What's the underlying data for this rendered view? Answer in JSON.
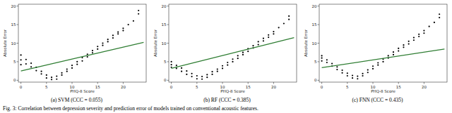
{
  "chart_data": [
    {
      "type": "scatter",
      "title": "(a) SVM (CCC = 0.055)",
      "x_label": "PHQ-8 Score",
      "y_label": "Absolute Error",
      "xlim": [
        -0.5,
        24.5
      ],
      "ylim": [
        -0.5,
        20.5
      ],
      "xticks": [
        0,
        5,
        10,
        15,
        20
      ],
      "yticks": [
        0,
        5,
        10,
        15,
        20
      ],
      "grid": false,
      "series": [
        {
          "type": "scatter",
          "color": "#000000",
          "marker": "circle",
          "x": [
            0,
            0,
            0,
            1,
            1,
            2,
            2,
            3,
            3,
            4,
            4,
            5,
            5,
            6,
            6,
            7,
            7,
            8,
            8,
            9,
            9,
            10,
            10,
            11,
            11,
            12,
            12,
            13,
            13,
            14,
            14,
            15,
            15,
            16,
            16,
            17,
            17,
            18,
            18,
            19,
            19,
            20,
            20,
            21,
            22,
            23,
            23
          ],
          "values": [
            6.8,
            5.5,
            4.2,
            5.6,
            4.4,
            4.6,
            3.6,
            3.5,
            2.6,
            2.4,
            1.7,
            1.4,
            0.6,
            0.8,
            0.2,
            1.1,
            0.3,
            2.0,
            1.4,
            3.0,
            2.4,
            4.0,
            3.3,
            5.0,
            4.3,
            6.1,
            5.2,
            7.0,
            6.3,
            8.0,
            7.4,
            9.1,
            8.4,
            10.0,
            9.4,
            11.0,
            10.4,
            12.1,
            11.4,
            13.0,
            12.5,
            14.0,
            13.4,
            15.0,
            16.0,
            18.8,
            17.9
          ]
        },
        {
          "type": "line",
          "color": "#2e7d32",
          "line_style": "solid",
          "x": [
            0,
            24
          ],
          "values": [
            2.5,
            10.2
          ]
        }
      ]
    },
    {
      "type": "scatter",
      "title": "(b) RF (CCC = 0.385)",
      "x_label": "PHQ-8 Score",
      "y_label": "Absolute Error",
      "xlim": [
        -0.5,
        24.5
      ],
      "ylim": [
        -0.5,
        20.5
      ],
      "xticks": [
        0,
        5,
        10,
        15,
        20
      ],
      "yticks": [
        0,
        5,
        10,
        15,
        20
      ],
      "grid": false,
      "series": [
        {
          "type": "scatter",
          "color": "#000000",
          "marker": "circle",
          "x": [
            0,
            0,
            0,
            1,
            1,
            2,
            2,
            3,
            3,
            4,
            4,
            5,
            5,
            6,
            6,
            7,
            7,
            8,
            8,
            9,
            9,
            10,
            10,
            11,
            11,
            12,
            12,
            13,
            13,
            14,
            14,
            15,
            15,
            16,
            16,
            17,
            17,
            18,
            18,
            19,
            19,
            20,
            20,
            21,
            22,
            23,
            23
          ],
          "values": [
            5.0,
            4.2,
            3.5,
            4.0,
            3.2,
            3.3,
            2.4,
            2.5,
            1.6,
            1.8,
            1.0,
            1.2,
            0.4,
            1.0,
            0.3,
            1.5,
            0.8,
            2.3,
            1.6,
            3.0,
            2.4,
            3.9,
            3.2,
            4.8,
            4.1,
            5.7,
            5.0,
            6.6,
            5.9,
            7.5,
            6.9,
            8.5,
            7.8,
            9.3,
            8.7,
            10.4,
            9.6,
            11.3,
            10.6,
            12.2,
            11.6,
            13.1,
            12.5,
            14.2,
            15.3,
            17.3,
            16.4
          ]
        },
        {
          "type": "line",
          "color": "#2e7d32",
          "line_style": "solid",
          "x": [
            0,
            24
          ],
          "values": [
            3.2,
            11.5
          ]
        }
      ]
    },
    {
      "type": "scatter",
      "title": "(c) FNN (CCC = 0.435)",
      "x_label": "PHQ-8 Score",
      "y_label": "Absolute Error",
      "xlim": [
        -0.5,
        24.5
      ],
      "ylim": [
        -0.5,
        20.5
      ],
      "xticks": [
        0,
        5,
        10,
        15,
        20
      ],
      "yticks": [
        0,
        5,
        10,
        15,
        20
      ],
      "grid": false,
      "series": [
        {
          "type": "scatter",
          "color": "#000000",
          "marker": "circle",
          "x": [
            0,
            0,
            0,
            1,
            1,
            2,
            2,
            3,
            3,
            4,
            4,
            5,
            5,
            6,
            6,
            7,
            7,
            8,
            8,
            9,
            9,
            10,
            10,
            11,
            11,
            12,
            12,
            13,
            13,
            14,
            14,
            15,
            15,
            16,
            16,
            17,
            17,
            18,
            18,
            19,
            19,
            20,
            20,
            21,
            22,
            23,
            23
          ],
          "values": [
            6.6,
            6.0,
            5.2,
            5.5,
            4.8,
            4.5,
            3.8,
            3.6,
            2.9,
            2.7,
            2.0,
            1.9,
            1.2,
            1.3,
            0.6,
            1.1,
            0.4,
            1.8,
            1.2,
            2.8,
            2.1,
            3.8,
            3.1,
            4.7,
            4.1,
            5.7,
            5.0,
            6.6,
            6.0,
            7.6,
            6.9,
            8.6,
            7.9,
            9.5,
            8.9,
            10.5,
            9.8,
            11.5,
            10.8,
            12.4,
            11.8,
            13.4,
            12.7,
            14.5,
            15.6,
            17.8,
            16.9
          ]
        },
        {
          "type": "line",
          "color": "#2e7d32",
          "line_style": "solid",
          "x": [
            0,
            24
          ],
          "values": [
            3.4,
            8.4
          ]
        }
      ]
    }
  ],
  "caption": "Fig. 3: Correlation between depression severity and prediction error of models trained on conventional acoustic features."
}
